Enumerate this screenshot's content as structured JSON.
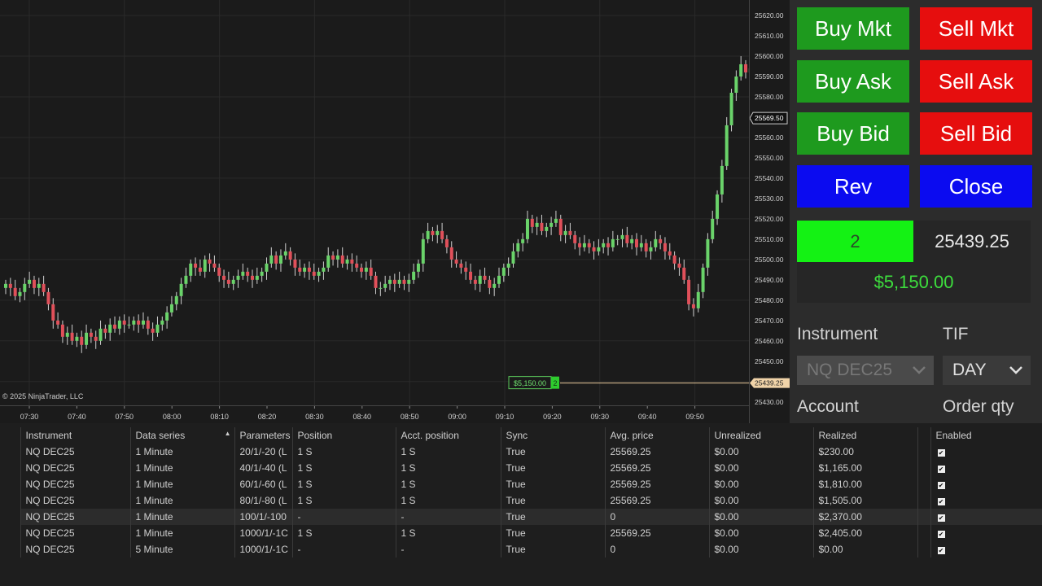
{
  "chart": {
    "copyright": "© 2025 NinjaTrader, LLC",
    "y_ticks": [
      "25620.00",
      "25610.00",
      "25600.00",
      "25590.00",
      "25580.00",
      "25570.00",
      "25560.00",
      "25550.00",
      "25540.00",
      "25530.00",
      "25520.00",
      "25510.00",
      "25500.00",
      "25490.00",
      "25480.00",
      "25470.00",
      "25460.00",
      "25450.00",
      "25440.00",
      "25430.00"
    ],
    "x_ticks": [
      "07:30",
      "07:40",
      "07:50",
      "08:00",
      "08:10",
      "08:20",
      "08:30",
      "08:40",
      "08:50",
      "09:00",
      "09:10",
      "09:20",
      "09:30",
      "09:40",
      "09:50"
    ],
    "last_price_label": "25569.50",
    "position_price_label": "25439.25",
    "pnl_flag": "$5,150.00",
    "pnl_flag_qty": "2",
    "colors": {
      "up": "#6ad36a",
      "down": "#e0505a",
      "wick": "#cfcfcf",
      "position_line": "#e8c99a"
    }
  },
  "panel": {
    "buttons": {
      "buy_mkt": "Buy Mkt",
      "sell_mkt": "Sell Mkt",
      "buy_ask": "Buy Ask",
      "sell_ask": "Sell Ask",
      "buy_bid": "Buy Bid",
      "sell_bid": "Sell Bid",
      "rev": "Rev",
      "close": "Close"
    },
    "position_qty": "2",
    "avg_price": "25439.25",
    "unrealized": "$5,150.00",
    "instrument_label": "Instrument",
    "instrument_value": "NQ DEC25",
    "tif_label": "TIF",
    "tif_value": "DAY",
    "account_label": "Account",
    "order_qty_label": "Order qty"
  },
  "grid": {
    "headers": [
      "Instrument",
      "Data series",
      "Parameters",
      "Position",
      "Acct. position",
      "Sync",
      "Avg. price",
      "Unrealized",
      "Realized",
      "Enabled"
    ],
    "rows": [
      [
        "NQ DEC25",
        "1 Minute",
        "20/1/-20 (L",
        "1 S",
        "1 S",
        "True",
        "25569.25",
        "$0.00",
        "$230.00"
      ],
      [
        "NQ DEC25",
        "1 Minute",
        "40/1/-40 (L",
        "1 S",
        "1 S",
        "True",
        "25569.25",
        "$0.00",
        "$1,165.00"
      ],
      [
        "NQ DEC25",
        "1 Minute",
        "60/1/-60 (L",
        "1 S",
        "1 S",
        "True",
        "25569.25",
        "$0.00",
        "$1,810.00"
      ],
      [
        "NQ DEC25",
        "1 Minute",
        "80/1/-80 (L",
        "1 S",
        "1 S",
        "True",
        "25569.25",
        "$0.00",
        "$1,505.00"
      ],
      [
        "NQ DEC25",
        "1 Minute",
        "100/1/-100",
        "-",
        "-",
        "True",
        "0",
        "$0.00",
        "$2,370.00"
      ],
      [
        "NQ DEC25",
        "1 Minute",
        "1000/1/-1C",
        "1 S",
        "1 S",
        "True",
        "25569.25",
        "$0.00",
        "$2,405.00"
      ],
      [
        "NQ DEC25",
        "5 Minute",
        "1000/1/-1C",
        "-",
        "-",
        "True",
        "0",
        "$0.00",
        "$0.00"
      ]
    ]
  },
  "chart_data": {
    "type": "candlestick",
    "interval": "1 Minute",
    "ylim": [
      25430,
      25625
    ],
    "x_first": "07:28",
    "closes": [
      25488,
      25486,
      25482,
      25484,
      25488,
      25490,
      25486,
      25488,
      25484,
      25478,
      25470,
      25468,
      25462,
      25464,
      25460,
      25462,
      25458,
      25464,
      25462,
      25460,
      25466,
      25464,
      25468,
      25466,
      25470,
      25468,
      25468,
      25470,
      25468,
      25470,
      25466,
      25464,
      25468,
      25470,
      25474,
      25478,
      25482,
      25488,
      25492,
      25498,
      25496,
      25494,
      25500,
      25498,
      25496,
      25492,
      25490,
      25488,
      25490,
      25492,
      25494,
      25492,
      25490,
      25492,
      25494,
      25498,
      25502,
      25498,
      25502,
      25504,
      25500,
      25496,
      25494,
      25496,
      25494,
      25492,
      25494,
      25496,
      25502,
      25500,
      25502,
      25498,
      25500,
      25498,
      25496,
      25494,
      25496,
      25492,
      25486,
      25486,
      25488,
      25490,
      25488,
      25490,
      25488,
      25490,
      25494,
      25498,
      25510,
      25514,
      25512,
      25514,
      25510,
      25506,
      25500,
      25498,
      25496,
      25494,
      25490,
      25488,
      25492,
      25490,
      25486,
      25488,
      25492,
      25496,
      25498,
      25504,
      25508,
      25510,
      25520,
      25516,
      25518,
      25514,
      25516,
      25518,
      25520,
      25512,
      25514,
      25512,
      25508,
      25506,
      25508,
      25506,
      25504,
      25506,
      25508,
      25506,
      25510,
      25510,
      25512,
      25508,
      25510,
      25506,
      25508,
      25504,
      25506,
      25510,
      25508,
      25504,
      25502,
      25498,
      25496,
      25490,
      25478,
      25476,
      25484,
      25496,
      25510,
      25520,
      25532,
      25546,
      25566,
      25582,
      25590,
      25596,
      25592,
      25594,
      25590,
      25588,
      25580,
      25584,
      25590,
      25596,
      25588,
      25600,
      25594,
      25590,
      25586,
      25596,
      25584,
      25600,
      25606,
      25600,
      25586,
      25574,
      25568,
      25569.5
    ]
  }
}
